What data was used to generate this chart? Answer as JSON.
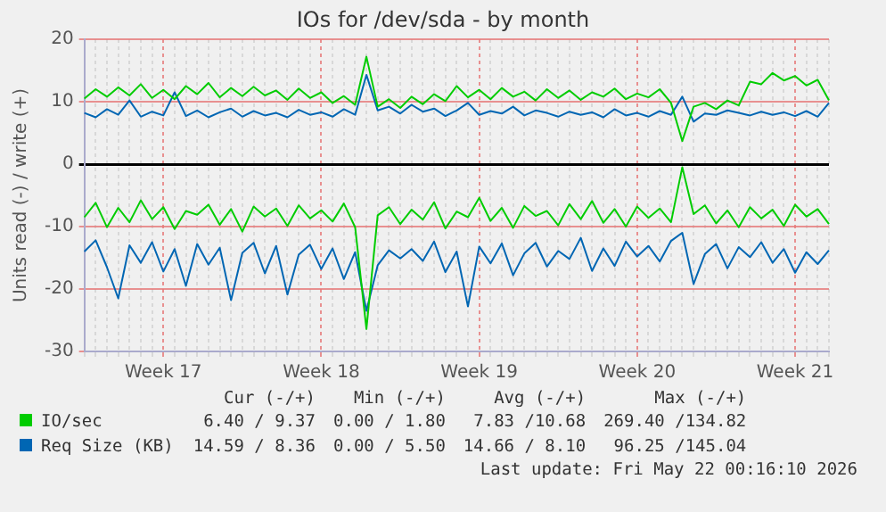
{
  "chart_data": {
    "type": "line",
    "title": "IOs for /dev/sda - by month",
    "ylabel": "Units read (-) / write (+)",
    "categories": [
      null,
      null,
      null,
      null,
      null,
      null,
      null,
      "Week 17",
      null,
      null,
      null,
      null,
      null,
      null,
      null,
      null,
      null,
      null,
      null,
      null,
      null,
      "Week 18",
      null,
      null,
      null,
      null,
      null,
      null,
      null,
      null,
      null,
      null,
      null,
      null,
      null,
      "Week 19",
      null,
      null,
      null,
      null,
      null,
      null,
      null,
      null,
      null,
      null,
      null,
      null,
      null,
      "Week 20",
      null,
      null,
      null,
      null,
      null,
      null,
      null,
      null,
      null,
      null,
      null,
      null,
      null,
      "Week 21",
      null,
      null,
      null
    ],
    "ylim": [
      -30,
      20
    ],
    "yticks": [
      -30,
      -20,
      -10,
      0,
      10,
      20
    ],
    "grid": true,
    "legend": "bottom",
    "marker": "none",
    "line_style": "solid",
    "series": [
      {
        "name": "IO/sec",
        "color": "#00cc00",
        "values": [
          10.5,
          12,
          10.8,
          12.3,
          11,
          12.8,
          10.6,
          11.9,
          10.4,
          12.5,
          11.2,
          13,
          10.7,
          12.2,
          10.9,
          12.4,
          11,
          11.8,
          10.3,
          12.1,
          10.6,
          11.5,
          9.8,
          10.9,
          9.5,
          17.2,
          9.2,
          10.4,
          9,
          10.8,
          9.6,
          11.2,
          10.1,
          12.5,
          10.7,
          11.9,
          10.4,
          12.2,
          10.8,
          11.6,
          10.2,
          12,
          10.6,
          11.8,
          10.3,
          11.5,
          10.8,
          12.1,
          10.4,
          11.3,
          10.7,
          12,
          9.8,
          3.7,
          9.2,
          9.8,
          8.8,
          10.2,
          9.4,
          13.2,
          12.8,
          14.6,
          13.4,
          14.1,
          12.6,
          13.5,
          10.2
        ]
      },
      {
        "name": "Req Size (KB)",
        "color": "#0066b3",
        "values": [
          8.2,
          7.5,
          8.8,
          7.9,
          10.2,
          7.6,
          8.4,
          7.8,
          11.5,
          7.7,
          8.6,
          7.5,
          8.3,
          8.9,
          7.6,
          8.5,
          7.8,
          8.2,
          7.5,
          8.7,
          7.9,
          8.3,
          7.6,
          8.8,
          7.9,
          14.3,
          8.6,
          9.2,
          8.1,
          9.5,
          8.4,
          8.9,
          7.7,
          8.6,
          9.8,
          7.9,
          8.5,
          8.1,
          9.2,
          7.8,
          8.6,
          8.2,
          7.6,
          8.4,
          7.9,
          8.3,
          7.5,
          8.8,
          7.8,
          8.2,
          7.6,
          8.5,
          7.9,
          10.8,
          6.8,
          8.1,
          7.9,
          8.6,
          8.2,
          7.8,
          8.4,
          7.9,
          8.3,
          7.7,
          8.5,
          7.6,
          9.8
        ]
      },
      {
        "color": "#00cc00",
        "values": [
          -8.5,
          -6.2,
          -10.1,
          -7,
          -9.3,
          -5.8,
          -8.8,
          -6.9,
          -10.4,
          -7.5,
          -8.1,
          -6.5,
          -9.7,
          -7.2,
          -10.8,
          -6.8,
          -8.4,
          -7.1,
          -9.9,
          -6.6,
          -8.7,
          -7.4,
          -9.2,
          -6.3,
          -10.1,
          -26.4,
          -8.2,
          -6.9,
          -9.6,
          -7.3,
          -8.9,
          -6.1,
          -10.3,
          -7.6,
          -8.5,
          -5.4,
          -9.1,
          -7,
          -10.2,
          -6.7,
          -8.3,
          -7.5,
          -9.8,
          -6.4,
          -8.8,
          -5.9,
          -9.4,
          -7.2,
          -10,
          -6.8,
          -8.6,
          -7.1,
          -9.3,
          -0.5,
          -8,
          -6.6,
          -9.5,
          -7.4,
          -10.1,
          -6.9,
          -8.7,
          -7.3,
          -9.9,
          -6.5,
          -8.4,
          -7.2,
          -9.6
        ]
      },
      {
        "color": "#0066b3",
        "values": [
          -14,
          -12.2,
          -16.5,
          -21.5,
          -13,
          -15.8,
          -12.5,
          -17.2,
          -13.6,
          -19.5,
          -12.8,
          -16.1,
          -13.4,
          -21.8,
          -14.2,
          -12.6,
          -17.5,
          -13.1,
          -20.9,
          -14.5,
          -12.9,
          -16.8,
          -13.5,
          -18.4,
          -14.1,
          -23.5,
          -16.2,
          -13.8,
          -15.1,
          -13.6,
          -15.5,
          -12.4,
          -17.3,
          -14,
          -22.8,
          -13.2,
          -15.9,
          -12.7,
          -17.8,
          -14.3,
          -12.6,
          -16.4,
          -13.9,
          -15.2,
          -11.8,
          -17.1,
          -13.5,
          -16.3,
          -12.4,
          -14.8,
          -13.1,
          -15.6,
          -12.3,
          -11,
          -19.2,
          -14.4,
          -12.8,
          -16.7,
          -13.3,
          -14.9,
          -12.5,
          -15.8,
          -13.6,
          -17.4,
          -14.1,
          -16,
          -13.8
        ]
      }
    ],
    "annotations": [
      "Cur (-/+)",
      "Min (-/+)",
      "Avg (-/+)",
      "Max (-/+)",
      "6.40 / 9.37",
      "0.00 / 1.80",
      "7.83 /10.68",
      "269.40 /134.82",
      "14.59 / 8.36",
      "0.00 / 5.50",
      "14.66 / 8.10",
      "96.25 /145.04",
      "Last update: Fri May 22 00:16:10 2026"
    ]
  }
}
